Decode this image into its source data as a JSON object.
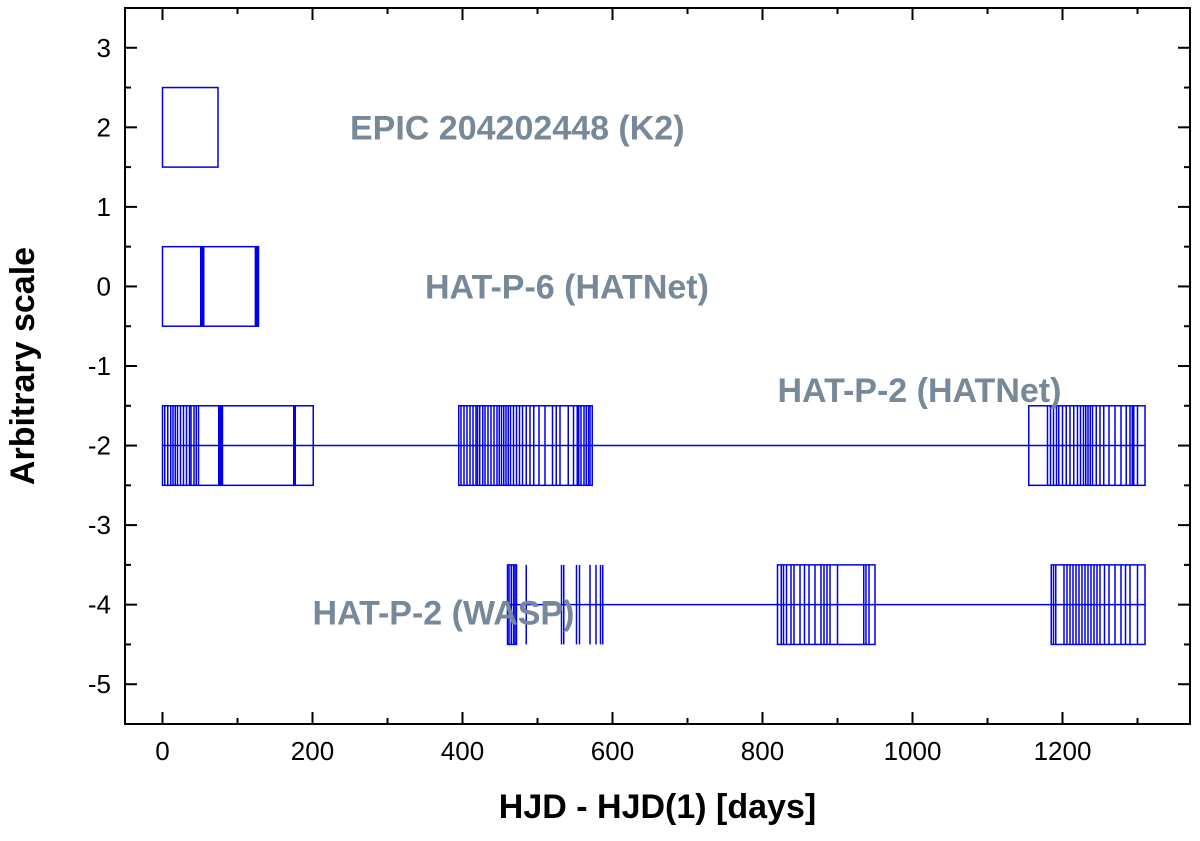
{
  "chart_data": {
    "type": "timeline",
    "title": "",
    "xlabel": "HJD - HJD(1) [days]",
    "ylabel": "Arbitrary scale",
    "xlim": [
      -50,
      1370
    ],
    "ylim": [
      -5.5,
      3.5
    ],
    "xticks": [
      0,
      200,
      400,
      600,
      800,
      1000,
      1200
    ],
    "yticks": [
      3,
      2,
      1,
      0,
      -1,
      -2,
      -3,
      -4,
      -5
    ],
    "xtick_labels": [
      "0",
      "200",
      "400",
      "600",
      "800",
      "1000",
      "1200"
    ],
    "ytick_labels": [
      "3",
      "2",
      "1",
      "0",
      "-1",
      "-2",
      "-3",
      "-4",
      "-5"
    ],
    "grid": false,
    "color": "#0000ee",
    "annotations_color": "#778899",
    "series": [
      {
        "name": "EPIC 204202448 (K2)",
        "y_center": 2,
        "half_height": 0.5,
        "segments": [
          [
            0,
            74
          ]
        ],
        "marks": []
      },
      {
        "name": "HAT-P-6 (HATNet)",
        "y_center": 0,
        "half_height": 0.5,
        "segments": [
          [
            0,
            51
          ],
          [
            52,
            54
          ],
          [
            55,
            124
          ],
          [
            125,
            128
          ]
        ],
        "marks": [
          51,
          52,
          53,
          54,
          124,
          125,
          126,
          127
        ]
      },
      {
        "name": "HAT-P-2 (HATNet)",
        "y_center": -2,
        "half_height": 0.5,
        "baseline": [
          0,
          1310
        ],
        "segments": [
          [
            0,
            201
          ],
          [
            395,
            573
          ],
          [
            1155,
            1310
          ]
        ],
        "marks": [
          3,
          7,
          11,
          14,
          17,
          20,
          24,
          28,
          32,
          36,
          38,
          42,
          45,
          48,
          75,
          76,
          77,
          78,
          79,
          80,
          175,
          176,
          177,
          398,
          402,
          406,
          410,
          414,
          418,
          420,
          423,
          427,
          430,
          434,
          438,
          442,
          446,
          449,
          452,
          455,
          458,
          461,
          464,
          468,
          472,
          476,
          480,
          485,
          490,
          495,
          502,
          510,
          520,
          525,
          530,
          541,
          548,
          553,
          555,
          558,
          562,
          565,
          568,
          570,
          1180,
          1184,
          1188,
          1192,
          1195,
          1200,
          1205,
          1210,
          1215,
          1220,
          1224,
          1228,
          1231,
          1234,
          1237,
          1240,
          1245,
          1250,
          1255,
          1262,
          1270,
          1278,
          1285,
          1290,
          1293,
          1295,
          1300
        ]
      },
      {
        "name": "HAT-P-2 (WASP)",
        "y_center": -4,
        "half_height": 0.5,
        "baseline": [
          460,
          1310
        ],
        "segments": [
          [
            460,
            472
          ],
          [
            820,
            950
          ],
          [
            1185,
            1310
          ]
        ],
        "marks": [
          462,
          465,
          468,
          470,
          485,
          532,
          535,
          552,
          556,
          570,
          578,
          584,
          587,
          825,
          828,
          832,
          838,
          842,
          850,
          856,
          862,
          870,
          878,
          882,
          886,
          890,
          900,
          935,
          938,
          942,
          1188,
          1191,
          1202,
          1206,
          1210,
          1214,
          1218,
          1222,
          1226,
          1230,
          1234,
          1238,
          1242,
          1246,
          1250,
          1256,
          1262,
          1270,
          1278,
          1284,
          1290,
          1300
        ]
      }
    ],
    "annotation_labels": [
      {
        "text": "EPIC 204202448 (K2)",
        "x": 250,
        "y": 2
      },
      {
        "text": "HAT-P-6 (HATNet)",
        "x": 350,
        "y": 0
      },
      {
        "text": "HAT-P-2 (HATNet)",
        "x": 820,
        "y": -1.3
      },
      {
        "text": "HAT-P-2 (WASP)",
        "x": 200,
        "y": -4.1
      }
    ]
  }
}
